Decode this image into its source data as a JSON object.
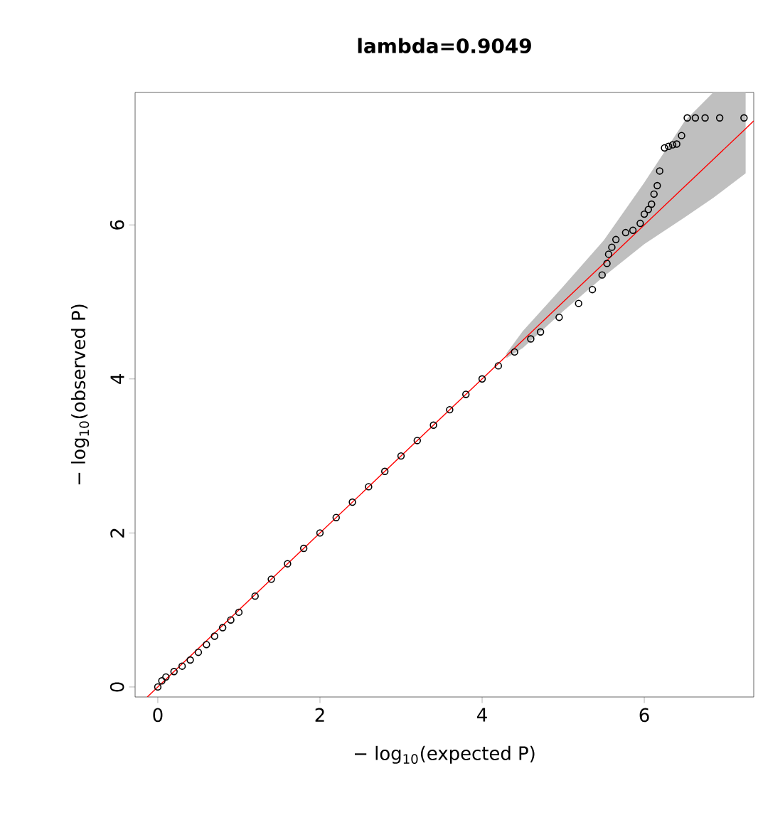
{
  "chart_data": {
    "type": "scatter",
    "title": "lambda=0.9049",
    "xlabel": "− log$_{10}$(expected P)",
    "ylabel": "− log$_{10}$(observed P)",
    "xlim": [
      -0.28,
      7.35
    ],
    "ylim": [
      -0.13,
      7.72
    ],
    "xticks": [
      0,
      2,
      4,
      6
    ],
    "yticks": [
      0,
      2,
      4,
      6
    ],
    "grid": false,
    "series": [
      {
        "type": "line",
        "marker": "none",
        "color": "#ff0000",
        "x": [
          -0.13,
          4.3,
          4.5,
          5,
          5.5,
          6,
          6.5,
          6.85,
          7.25,
          7.35
        ],
        "values": [
          -0.13,
          4.3,
          4.5,
          5,
          5.5,
          6,
          6.5,
          6.85,
          7.25,
          7.35
        ],
        "lower": [
          null,
          4.27,
          4.4,
          4.88,
          5.33,
          5.75,
          6.1,
          6.35,
          6.67,
          null
        ],
        "upper": [
          null,
          4.33,
          4.62,
          5.2,
          5.8,
          6.55,
          7.35,
          7.72,
          7.72,
          null
        ]
      },
      {
        "marker": "circle",
        "color": "#000000",
        "x": [
          0,
          0.05,
          0.1,
          0.2,
          0.3,
          0.4,
          0.5,
          0.6,
          0.7,
          0.8,
          0.9,
          1,
          1.2,
          1.4,
          1.6,
          1.8,
          2,
          2.2,
          2.4,
          2.6,
          2.8,
          3,
          3.2,
          3.4,
          3.6,
          3.8,
          4,
          4.2,
          4.4,
          4.6,
          4.72,
          4.95,
          5.19,
          5.36,
          5.48,
          5.54,
          5.56,
          5.6,
          5.65,
          5.77,
          5.86,
          5.95,
          6,
          6.05,
          6.09,
          6.12,
          6.16,
          6.19,
          6.25,
          6.3,
          6.35,
          6.4,
          6.46,
          6.53,
          6.63,
          6.75,
          6.93,
          7.23
        ],
        "values": [
          0,
          0.08,
          0.13,
          0.2,
          0.27,
          0.35,
          0.45,
          0.55,
          0.66,
          0.77,
          0.87,
          0.97,
          1.18,
          1.4,
          1.6,
          1.8,
          2,
          2.2,
          2.4,
          2.6,
          2.8,
          3,
          3.2,
          3.4,
          3.6,
          3.8,
          4,
          4.17,
          4.35,
          4.52,
          4.61,
          4.8,
          4.98,
          5.16,
          5.35,
          5.5,
          5.62,
          5.71,
          5.81,
          5.9,
          5.93,
          6.02,
          6.14,
          6.2,
          6.27,
          6.4,
          6.51,
          6.7,
          7,
          7.02,
          7.04,
          7.05,
          7.16,
          7.39,
          7.39,
          7.39,
          7.39,
          7.39
        ]
      }
    ]
  }
}
